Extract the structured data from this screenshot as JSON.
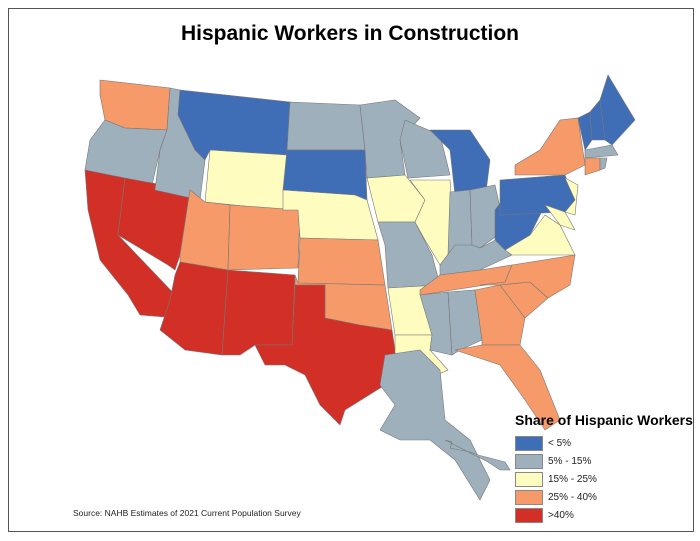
{
  "title": "Hispanic Workers in Construction",
  "source": "Source: NAHB Estimates of 2021 Current Population Survey",
  "legend": {
    "title": "Share of Hispanic Workers",
    "items": [
      {
        "label": "< 5%",
        "color": "#3f6eb6"
      },
      {
        "label": "5% - 15%",
        "color": "#9fb0bd"
      },
      {
        "label": "15% - 25%",
        "color": "#fefcbf"
      },
      {
        "label": "25% - 40%",
        "color": "#f59a68"
      },
      {
        "label": ">40%",
        "color": "#d22f27"
      }
    ]
  },
  "states": {
    "WA": 3,
    "OR": 1,
    "CA": 4,
    "NV": 4,
    "ID": 1,
    "MT": 0,
    "WY": 2,
    "UT": 3,
    "CO": 3,
    "AZ": 4,
    "NM": 4,
    "ND": 1,
    "SD": 0,
    "NE": 2,
    "KS": 3,
    "OK": 3,
    "TX": 4,
    "MN": 1,
    "IA": 2,
    "MO": 1,
    "AR": 2,
    "LA": 2,
    "WI": 1,
    "IL": 2,
    "MI": 0,
    "IN": 1,
    "OH": 1,
    "KY": 1,
    "TN": 3,
    "MS": 1,
    "AL": 1,
    "GA": 3,
    "FL": 3,
    "SC": 3,
    "NC": 3,
    "VA": 2,
    "WV": 0,
    "PA": 0,
    "NY": 3,
    "NJ": 2,
    "MD": 2,
    "VT": 0,
    "NH": 0,
    "ME": 0,
    "MA": 1,
    "CT": 3,
    "RI": 1,
    "AK": 1,
    "HI": 1
  }
}
